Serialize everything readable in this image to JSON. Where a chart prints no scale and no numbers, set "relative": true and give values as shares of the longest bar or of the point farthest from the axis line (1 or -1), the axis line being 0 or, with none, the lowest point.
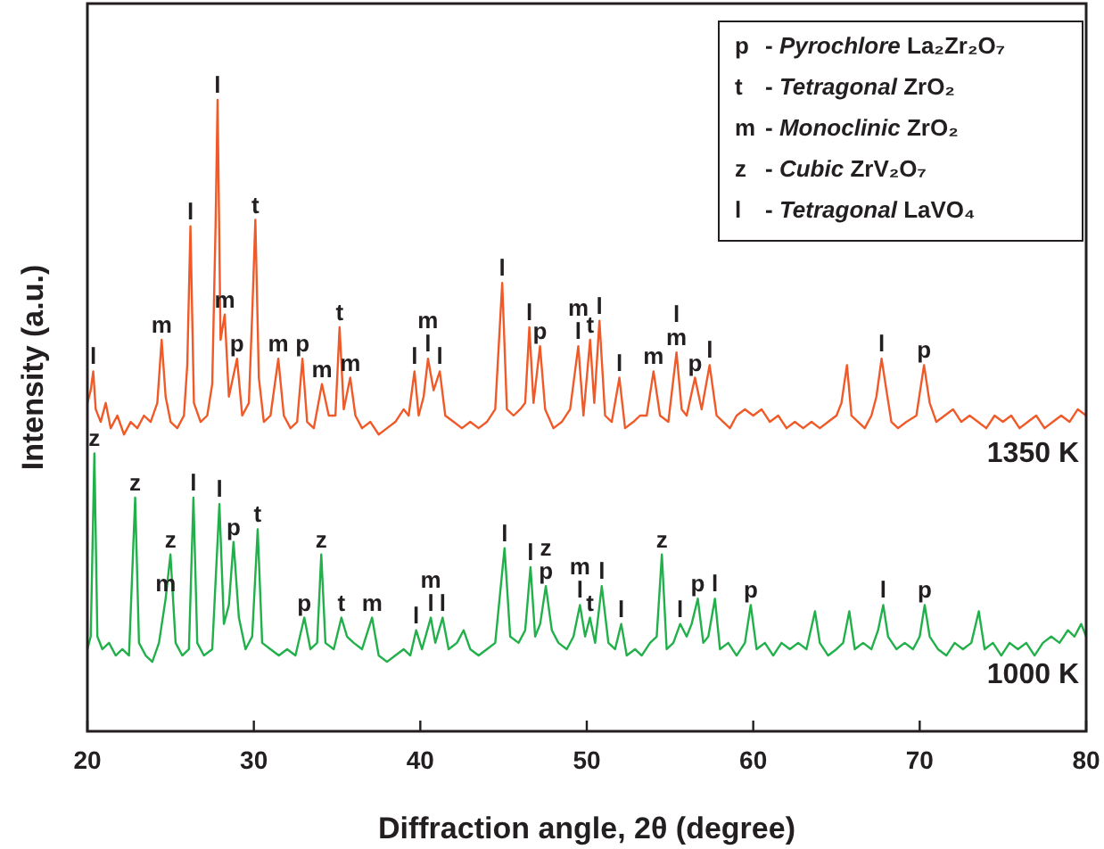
{
  "chart_data": {
    "type": "line",
    "relative": true,
    "xlabel": "Diffraction angle, 2θ (degree)",
    "ylabel": "Intensity (a.u.)",
    "xlim": [
      20,
      80
    ],
    "xticks": [
      20,
      30,
      40,
      50,
      60,
      70,
      80
    ],
    "grid": false,
    "marker": "none",
    "line_style": "solid",
    "series": [
      {
        "name": "1350 K",
        "color": "#f05a28",
        "x": [
          20.0,
          20.2,
          20.35,
          20.5,
          20.8,
          21.1,
          21.4,
          21.8,
          22.2,
          22.6,
          23.0,
          23.4,
          23.8,
          24.2,
          24.46,
          24.7,
          25.0,
          25.4,
          25.8,
          26.0,
          26.19,
          26.4,
          26.8,
          27.2,
          27.5,
          27.7,
          27.82,
          28.0,
          28.25,
          28.5,
          28.99,
          29.3,
          29.7,
          29.9,
          30.09,
          30.3,
          30.6,
          31.0,
          31.47,
          31.8,
          32.2,
          32.6,
          32.92,
          33.2,
          33.6,
          34.09,
          34.5,
          34.9,
          35.15,
          35.4,
          35.79,
          36.1,
          36.5,
          37.0,
          37.5,
          38.0,
          38.5,
          39.0,
          39.3,
          39.65,
          39.9,
          40.2,
          40.46,
          40.8,
          41.17,
          41.5,
          42.0,
          42.5,
          43.0,
          43.5,
          44.0,
          44.5,
          44.92,
          45.2,
          45.6,
          46.0,
          46.3,
          46.55,
          46.8,
          47.19,
          47.5,
          48.0,
          48.5,
          49.0,
          49.49,
          49.8,
          50.2,
          50.45,
          50.76,
          51.1,
          51.5,
          51.96,
          52.3,
          52.8,
          53.2,
          53.6,
          54.01,
          54.4,
          54.9,
          55.39,
          55.7,
          56.0,
          56.5,
          56.9,
          57.38,
          57.8,
          58.2,
          58.6,
          59.0,
          59.5,
          60.0,
          60.5,
          61.0,
          61.5,
          62.0,
          62.5,
          63.0,
          63.5,
          64.0,
          64.5,
          65.0,
          65.3,
          65.63,
          65.9,
          66.3,
          66.7,
          67.1,
          67.4,
          67.71,
          68.0,
          68.3,
          68.7,
          69.2,
          69.8,
          70.26,
          70.6,
          71.0,
          71.5,
          72.0,
          72.5,
          73.0,
          73.5,
          74.0,
          74.5,
          75.0,
          75.5,
          76.0,
          76.5,
          77.0,
          77.5,
          78.0,
          78.5,
          79.0,
          79.5,
          80.0
        ],
        "values": [
          0.52,
          0.54,
          0.57,
          0.51,
          0.49,
          0.52,
          0.48,
          0.5,
          0.47,
          0.49,
          0.48,
          0.5,
          0.49,
          0.52,
          0.62,
          0.53,
          0.49,
          0.48,
          0.5,
          0.58,
          0.8,
          0.52,
          0.49,
          0.5,
          0.55,
          0.8,
          1.0,
          0.62,
          0.66,
          0.53,
          0.59,
          0.5,
          0.52,
          0.66,
          0.81,
          0.56,
          0.49,
          0.5,
          0.59,
          0.5,
          0.48,
          0.49,
          0.59,
          0.49,
          0.48,
          0.55,
          0.5,
          0.5,
          0.64,
          0.51,
          0.56,
          0.5,
          0.48,
          0.49,
          0.47,
          0.48,
          0.49,
          0.51,
          0.5,
          0.57,
          0.5,
          0.53,
          0.59,
          0.54,
          0.57,
          0.5,
          0.49,
          0.48,
          0.49,
          0.48,
          0.49,
          0.51,
          0.71,
          0.51,
          0.5,
          0.51,
          0.52,
          0.64,
          0.52,
          0.61,
          0.51,
          0.48,
          0.49,
          0.51,
          0.61,
          0.5,
          0.62,
          0.52,
          0.65,
          0.5,
          0.49,
          0.56,
          0.48,
          0.49,
          0.5,
          0.5,
          0.57,
          0.5,
          0.49,
          0.6,
          0.51,
          0.5,
          0.56,
          0.51,
          0.58,
          0.5,
          0.49,
          0.48,
          0.5,
          0.51,
          0.5,
          0.51,
          0.49,
          0.5,
          0.48,
          0.49,
          0.48,
          0.49,
          0.48,
          0.49,
          0.5,
          0.52,
          0.58,
          0.5,
          0.49,
          0.48,
          0.5,
          0.53,
          0.59,
          0.54,
          0.49,
          0.48,
          0.49,
          0.5,
          0.58,
          0.52,
          0.49,
          0.5,
          0.51,
          0.49,
          0.5,
          0.49,
          0.48,
          0.5,
          0.49,
          0.5,
          0.48,
          0.49,
          0.5,
          0.48,
          0.49,
          0.5,
          0.49,
          0.51,
          0.5
        ]
      },
      {
        "name": "1000 K",
        "color": "#22b04b",
        "x": [
          20.0,
          20.2,
          20.42,
          20.6,
          20.9,
          21.3,
          21.7,
          22.1,
          22.5,
          22.87,
          23.1,
          23.5,
          23.9,
          24.3,
          24.7,
          24.99,
          25.3,
          25.7,
          26.1,
          26.37,
          26.6,
          27.0,
          27.5,
          27.93,
          28.2,
          28.5,
          28.78,
          29.1,
          29.5,
          29.9,
          30.23,
          30.5,
          31.0,
          31.5,
          32.0,
          32.5,
          33.03,
          33.4,
          33.8,
          34.05,
          34.3,
          34.8,
          35.26,
          35.6,
          36.0,
          36.5,
          37.1,
          37.5,
          38.0,
          38.5,
          39.0,
          39.4,
          39.75,
          40.1,
          40.63,
          40.9,
          41.34,
          41.7,
          42.2,
          42.6,
          43.0,
          43.5,
          44.0,
          44.5,
          45.06,
          45.4,
          45.9,
          46.3,
          46.62,
          46.9,
          47.2,
          47.54,
          47.9,
          48.3,
          48.8,
          49.2,
          49.59,
          49.9,
          50.19,
          50.5,
          50.9,
          51.3,
          51.7,
          52.07,
          52.4,
          52.9,
          53.3,
          53.8,
          54.2,
          54.51,
          54.8,
          55.2,
          55.61,
          56.0,
          56.3,
          56.67,
          57.0,
          57.3,
          57.7,
          58.0,
          58.5,
          59.0,
          59.5,
          59.85,
          60.2,
          60.7,
          61.2,
          61.7,
          62.2,
          62.7,
          63.2,
          63.71,
          64.0,
          64.5,
          65.0,
          65.4,
          65.77,
          66.1,
          66.6,
          67.1,
          67.5,
          67.81,
          68.1,
          68.6,
          69.1,
          69.6,
          70.0,
          70.3,
          70.6,
          71.1,
          71.6,
          72.1,
          72.6,
          73.1,
          73.55,
          73.9,
          74.4,
          74.9,
          75.4,
          75.9,
          76.4,
          76.9,
          77.4,
          77.9,
          78.4,
          78.9,
          79.3,
          79.7,
          80.0
        ],
        "values": [
          0.13,
          0.15,
          0.44,
          0.15,
          0.13,
          0.14,
          0.12,
          0.13,
          0.12,
          0.37,
          0.14,
          0.12,
          0.11,
          0.14,
          0.21,
          0.28,
          0.14,
          0.12,
          0.13,
          0.37,
          0.14,
          0.12,
          0.13,
          0.36,
          0.17,
          0.2,
          0.3,
          0.18,
          0.13,
          0.15,
          0.32,
          0.14,
          0.13,
          0.12,
          0.13,
          0.12,
          0.18,
          0.13,
          0.14,
          0.28,
          0.14,
          0.13,
          0.18,
          0.15,
          0.14,
          0.13,
          0.18,
          0.12,
          0.11,
          0.12,
          0.13,
          0.12,
          0.16,
          0.13,
          0.18,
          0.14,
          0.18,
          0.13,
          0.14,
          0.16,
          0.13,
          0.12,
          0.13,
          0.14,
          0.29,
          0.15,
          0.14,
          0.16,
          0.26,
          0.15,
          0.17,
          0.23,
          0.16,
          0.14,
          0.13,
          0.15,
          0.2,
          0.15,
          0.18,
          0.14,
          0.23,
          0.14,
          0.13,
          0.17,
          0.12,
          0.13,
          0.12,
          0.14,
          0.15,
          0.28,
          0.13,
          0.14,
          0.17,
          0.15,
          0.17,
          0.21,
          0.14,
          0.15,
          0.21,
          0.13,
          0.14,
          0.12,
          0.14,
          0.2,
          0.13,
          0.14,
          0.12,
          0.14,
          0.13,
          0.14,
          0.13,
          0.19,
          0.14,
          0.12,
          0.13,
          0.14,
          0.19,
          0.13,
          0.14,
          0.13,
          0.16,
          0.2,
          0.15,
          0.13,
          0.14,
          0.13,
          0.15,
          0.2,
          0.15,
          0.13,
          0.12,
          0.14,
          0.13,
          0.14,
          0.19,
          0.13,
          0.14,
          0.12,
          0.14,
          0.13,
          0.14,
          0.12,
          0.14,
          0.15,
          0.14,
          0.16,
          0.15,
          0.17,
          0.15
        ]
      }
    ],
    "annotations": [
      "p - Pyrochlore La₂Zr₂O₇",
      "t - Tetragonal ZrO₂",
      "m - Monoclinic ZrO₂",
      "z - Cubic ZrV₂O₇",
      "l - Tetragonal LaVO₄",
      {
        "text": "l",
        "x": 20.35,
        "y": 0.57
      },
      {
        "text": "m",
        "x": 24.46,
        "y": 0.62
      },
      {
        "text": "l",
        "x": 26.19,
        "y": 0.8
      },
      {
        "text": "l",
        "x": 27.82,
        "y": 1.0
      },
      {
        "text": "m",
        "x": 28.25,
        "y": 0.66
      },
      {
        "text": "p",
        "x": 28.99,
        "y": 0.59
      },
      {
        "text": "t",
        "x": 30.09,
        "y": 0.81
      },
      {
        "text": "m",
        "x": 31.47,
        "y": 0.59
      },
      {
        "text": "p",
        "x": 32.92,
        "y": 0.59
      },
      {
        "text": "m",
        "x": 34.09,
        "y": 0.55
      },
      {
        "text": "t",
        "x": 35.15,
        "y": 0.64
      },
      {
        "text": "m",
        "x": 35.79,
        "y": 0.56
      },
      {
        "text": "l",
        "x": 39.65,
        "y": 0.57
      },
      {
        "text": "l",
        "x": 40.46,
        "y": 0.59
      },
      {
        "text": "m",
        "x": 40.46,
        "y": 0.59
      },
      {
        "text": "l",
        "x": 41.17,
        "y": 0.57
      },
      {
        "text": "l",
        "x": 44.92,
        "y": 0.71
      },
      {
        "text": "l",
        "x": 46.55,
        "y": 0.64
      },
      {
        "text": "p",
        "x": 47.19,
        "y": 0.61
      },
      {
        "text": "l",
        "x": 49.49,
        "y": 0.61
      },
      {
        "text": "m",
        "x": 49.49,
        "y": 0.61
      },
      {
        "text": "t",
        "x": 50.2,
        "y": 0.62
      },
      {
        "text": "l",
        "x": 50.76,
        "y": 0.65
      },
      {
        "text": "l",
        "x": 51.96,
        "y": 0.56
      },
      {
        "text": "m",
        "x": 54.01,
        "y": 0.57
      },
      {
        "text": "m",
        "x": 55.39,
        "y": 0.6
      },
      {
        "text": "l",
        "x": 55.39,
        "y": 0.6
      },
      {
        "text": "p",
        "x": 56.5,
        "y": 0.56
      },
      {
        "text": "l",
        "x": 57.38,
        "y": 0.58
      },
      {
        "text": "l",
        "x": 67.71,
        "y": 0.59
      },
      {
        "text": "p",
        "x": 70.26,
        "y": 0.58
      },
      {
        "text": "z",
        "x": 20.42,
        "y": 0.44
      },
      {
        "text": "z",
        "x": 22.87,
        "y": 0.37
      },
      {
        "text": "m",
        "x": 24.7,
        "y": 0.21
      },
      {
        "text": "z",
        "x": 24.99,
        "y": 0.28
      },
      {
        "text": "l",
        "x": 26.37,
        "y": 0.37
      },
      {
        "text": "l",
        "x": 27.93,
        "y": 0.36
      },
      {
        "text": "p",
        "x": 28.78,
        "y": 0.3
      },
      {
        "text": "t",
        "x": 30.23,
        "y": 0.32
      },
      {
        "text": "p",
        "x": 33.03,
        "y": 0.18
      },
      {
        "text": "z",
        "x": 34.05,
        "y": 0.28
      },
      {
        "text": "t",
        "x": 35.26,
        "y": 0.18
      },
      {
        "text": "m",
        "x": 37.1,
        "y": 0.18
      },
      {
        "text": "l",
        "x": 39.75,
        "y": 0.16
      },
      {
        "text": "l",
        "x": 40.63,
        "y": 0.18
      },
      {
        "text": "m",
        "x": 40.63,
        "y": 0.18
      },
      {
        "text": "l",
        "x": 41.34,
        "y": 0.18
      },
      {
        "text": "l",
        "x": 45.06,
        "y": 0.29
      },
      {
        "text": "l",
        "x": 46.62,
        "y": 0.26
      },
      {
        "text": "p",
        "x": 47.54,
        "y": 0.23
      },
      {
        "text": "z",
        "x": 47.54,
        "y": 0.23
      },
      {
        "text": "l",
        "x": 49.59,
        "y": 0.2
      },
      {
        "text": "m",
        "x": 49.59,
        "y": 0.2
      },
      {
        "text": "t",
        "x": 50.19,
        "y": 0.18
      },
      {
        "text": "l",
        "x": 50.9,
        "y": 0.23
      },
      {
        "text": "l",
        "x": 52.07,
        "y": 0.17
      },
      {
        "text": "z",
        "x": 54.51,
        "y": 0.28
      },
      {
        "text": "l",
        "x": 55.61,
        "y": 0.17
      },
      {
        "text": "p",
        "x": 56.67,
        "y": 0.21
      },
      {
        "text": "l",
        "x": 57.7,
        "y": 0.21
      },
      {
        "text": "p",
        "x": 59.85,
        "y": 0.2
      },
      {
        "text": "l",
        "x": 67.81,
        "y": 0.2
      },
      {
        "text": "p",
        "x": 70.3,
        "y": 0.2
      }
    ]
  }
}
